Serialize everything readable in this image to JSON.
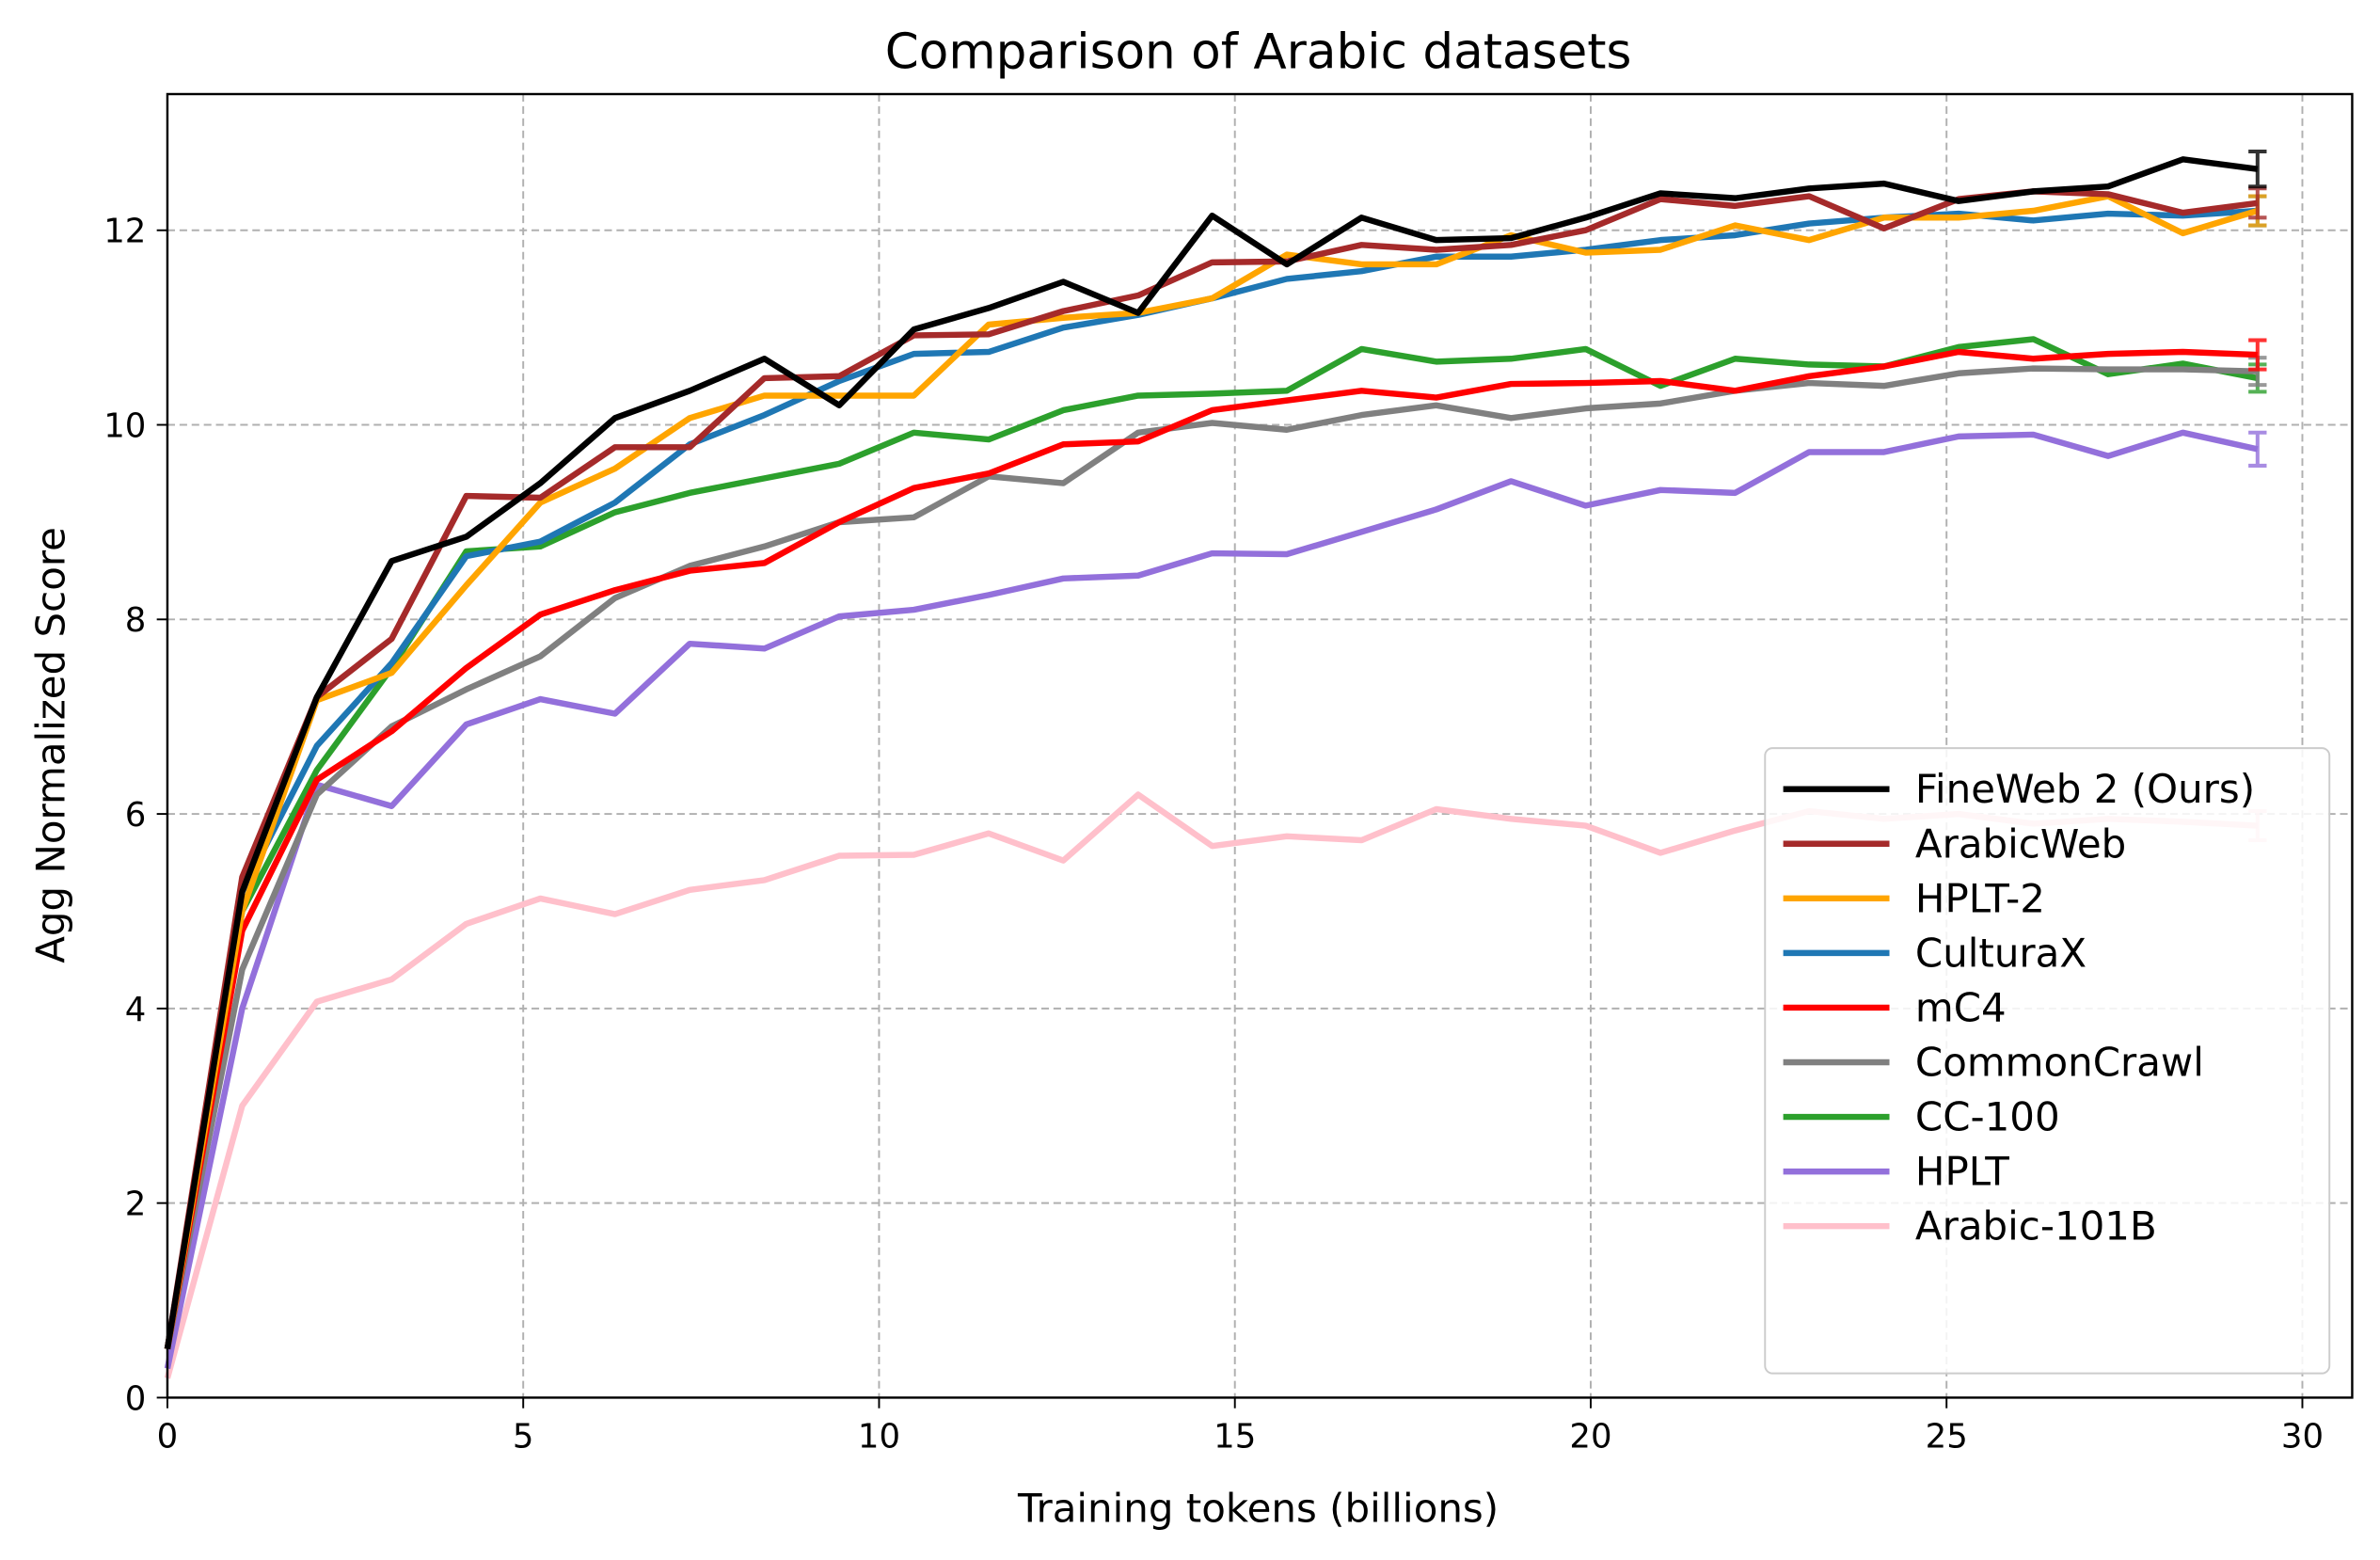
{
  "chart_data": {
    "type": "line",
    "title": "Comparison of Arabic datasets",
    "xlabel": "Training tokens (billions)",
    "ylabel": "Agg Normalized Score",
    "xlim": [
      0,
      30.7
    ],
    "ylim": [
      0,
      13.4
    ],
    "xticks": [
      0,
      5,
      10,
      15,
      20,
      25,
      30
    ],
    "yticks": [
      0,
      2,
      4,
      6,
      8,
      10,
      12
    ],
    "grid": true,
    "legend_position": "bottom-right",
    "x": [
      0,
      1.05,
      2.1,
      3.15,
      4.2,
      5.24,
      6.29,
      7.34,
      8.39,
      9.44,
      10.49,
      11.54,
      12.59,
      13.64,
      14.68,
      15.73,
      16.78,
      17.83,
      18.88,
      19.93,
      20.98,
      22.03,
      23.07,
      24.12,
      25.17,
      26.22,
      27.27,
      28.32,
      29.37
    ],
    "series": [
      {
        "name": "FineWeb 2 (Ours)",
        "color": "#000000",
        "error": 0.18,
        "values": [
          0.5,
          5.2,
          7.2,
          8.6,
          8.85,
          9.4,
          10.07,
          10.35,
          10.68,
          10.2,
          10.98,
          11.2,
          11.47,
          11.15,
          12.15,
          11.65,
          12.13,
          11.9,
          11.92,
          12.13,
          12.38,
          12.33,
          12.43,
          12.48,
          12.3,
          12.4,
          12.45,
          12.73,
          12.63
        ]
      },
      {
        "name": "ArabicWeb",
        "color": "#a52a2a",
        "error": 0.15,
        "values": [
          0.5,
          5.35,
          7.2,
          7.8,
          9.27,
          9.25,
          9.77,
          9.77,
          10.48,
          10.5,
          10.92,
          10.93,
          11.17,
          11.33,
          11.67,
          11.68,
          11.85,
          11.8,
          11.85,
          12.0,
          12.32,
          12.25,
          12.35,
          12.02,
          12.32,
          12.4,
          12.37,
          12.18,
          12.28
        ]
      },
      {
        "name": "HPLT-2",
        "color": "#ffa500",
        "error": 0.15,
        "values": [
          0.5,
          5.0,
          7.17,
          7.45,
          8.35,
          9.2,
          9.55,
          10.07,
          10.3,
          10.3,
          10.3,
          11.03,
          11.1,
          11.15,
          11.3,
          11.75,
          11.65,
          11.65,
          11.95,
          11.77,
          11.8,
          12.05,
          11.9,
          12.13,
          12.13,
          12.2,
          12.35,
          11.97,
          12.2
        ]
      },
      {
        "name": "CulturaX",
        "color": "#1f77b4",
        "error": 0.15,
        "values": [
          0.5,
          5.2,
          6.7,
          7.55,
          8.65,
          8.8,
          9.2,
          9.8,
          10.1,
          10.45,
          10.73,
          10.75,
          11.0,
          11.13,
          11.3,
          11.5,
          11.58,
          11.73,
          11.73,
          11.8,
          11.9,
          11.95,
          12.07,
          12.13,
          12.17,
          12.1,
          12.17,
          12.15,
          12.2
        ]
      },
      {
        "name": "mC4",
        "color": "#ff0000",
        "error": 0.15,
        "values": [
          0.5,
          4.8,
          6.35,
          6.85,
          7.5,
          8.05,
          8.3,
          8.5,
          8.58,
          9.0,
          9.35,
          9.5,
          9.8,
          9.83,
          10.15,
          10.25,
          10.35,
          10.28,
          10.42,
          10.43,
          10.45,
          10.35,
          10.5,
          10.6,
          10.75,
          10.68,
          10.73,
          10.75,
          10.72
        ]
      },
      {
        "name": "CommonCrawl",
        "color": "#808080",
        "error": 0.14,
        "values": [
          0.5,
          4.4,
          6.2,
          6.9,
          7.28,
          7.62,
          8.22,
          8.55,
          8.75,
          9.0,
          9.05,
          9.47,
          9.4,
          9.92,
          10.02,
          9.95,
          10.1,
          10.2,
          10.07,
          10.17,
          10.22,
          10.35,
          10.43,
          10.4,
          10.53,
          10.58,
          10.57,
          10.57,
          10.55
        ]
      },
      {
        "name": "CC-100",
        "color": "#2ca02c",
        "error": 0.14,
        "values": [
          0.5,
          5.0,
          6.45,
          7.5,
          8.7,
          8.75,
          9.1,
          9.3,
          9.45,
          9.6,
          9.92,
          9.85,
          10.15,
          10.3,
          10.32,
          10.35,
          10.78,
          10.65,
          10.68,
          10.78,
          10.4,
          10.68,
          10.62,
          10.6,
          10.8,
          10.88,
          10.52,
          10.63,
          10.48
        ]
      },
      {
        "name": "HPLT",
        "color": "#9370db",
        "error": 0.17,
        "values": [
          0.3,
          4.0,
          6.3,
          6.08,
          6.92,
          7.18,
          7.03,
          7.75,
          7.7,
          8.03,
          8.1,
          8.25,
          8.42,
          8.45,
          8.68,
          8.67,
          8.9,
          9.13,
          9.42,
          9.17,
          9.33,
          9.3,
          9.72,
          9.72,
          9.88,
          9.9,
          9.68,
          9.92,
          9.75
        ]
      },
      {
        "name": "Arabic-101B",
        "color": "#ffc0cb",
        "error": 0.15,
        "values": [
          0.2,
          3.0,
          4.07,
          4.3,
          4.87,
          5.13,
          4.97,
          5.22,
          5.32,
          5.57,
          5.58,
          5.8,
          5.52,
          6.2,
          5.67,
          5.77,
          5.73,
          6.05,
          5.95,
          5.88,
          5.6,
          5.83,
          6.03,
          5.95,
          6.0,
          5.9,
          5.95,
          5.92,
          5.88
        ]
      }
    ]
  }
}
